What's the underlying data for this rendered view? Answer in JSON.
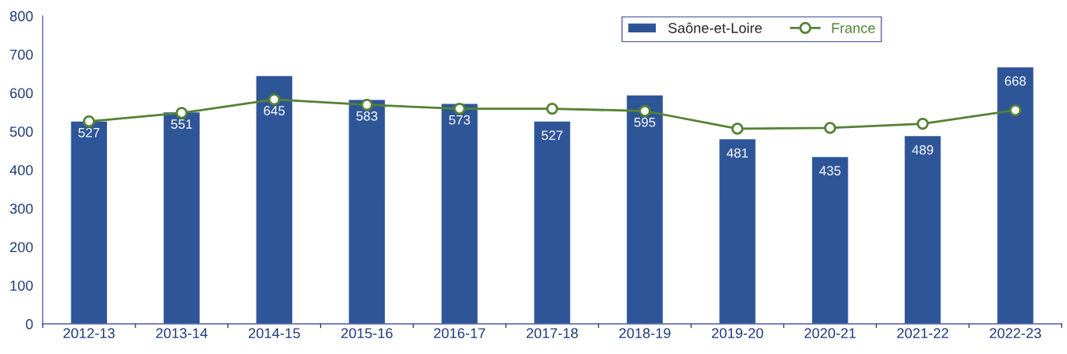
{
  "chart_data": {
    "type": "bar",
    "categories": [
      "2012-13",
      "2013-14",
      "2014-15",
      "2015-16",
      "2016-17",
      "2017-18",
      "2018-19",
      "2019-20",
      "2020-21",
      "2021-22",
      "2022-23"
    ],
    "series": [
      {
        "name": "Saône-et-Loire",
        "color": "#2e5597",
        "values": [
          527,
          551,
          645,
          583,
          573,
          527,
          595,
          481,
          435,
          489,
          668
        ],
        "value_labels": [
          "527",
          "551",
          "645",
          "583",
          "573",
          "527",
          "595",
          "481",
          "435",
          "489",
          "668"
        ]
      },
      {
        "name": "France",
        "type": "line",
        "color": "#548235",
        "marker": "circle",
        "values": [
          526,
          548,
          583,
          569,
          559,
          559,
          553,
          507,
          509,
          520,
          555
        ]
      }
    ],
    "ylim": [
      0,
      800
    ],
    "yticks": [
      0,
      100,
      200,
      300,
      400,
      500,
      600,
      700,
      800
    ],
    "grid": false,
    "legend": "top right"
  }
}
